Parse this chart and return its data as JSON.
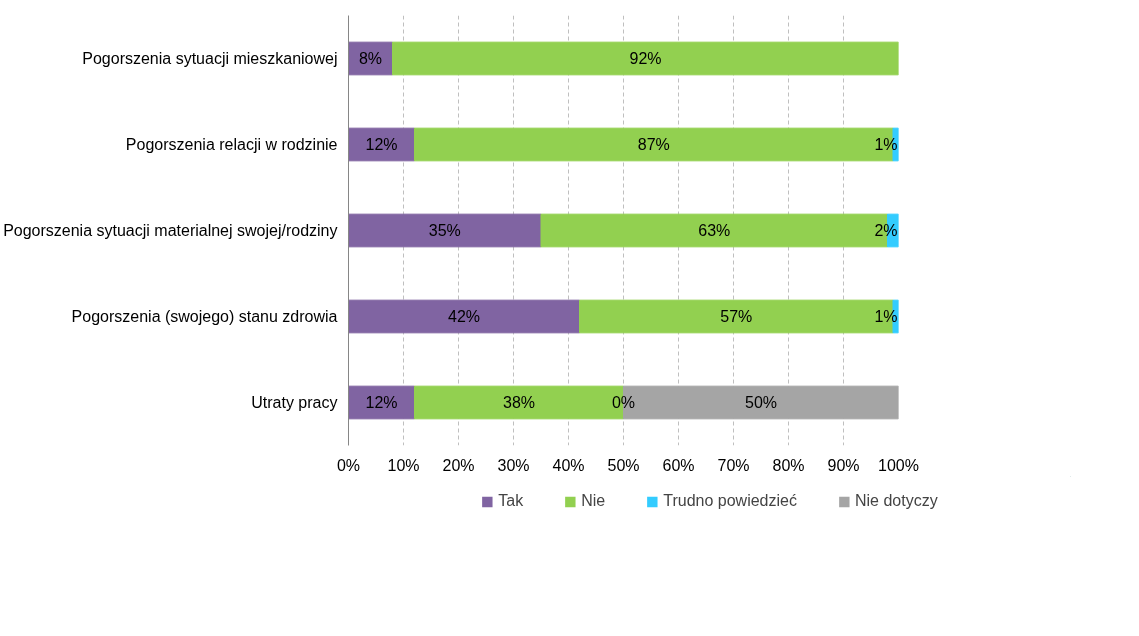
{
  "chart_data": {
    "type": "bar",
    "orientation": "horizontal",
    "stacked": true,
    "categories": [
      "Pogorszenia sytuacji mieszkaniowej",
      "Pogorszenia relacji w rodzinie",
      "Pogorszenia sytuacji materialnej swojej/rodziny",
      "Pogorszenia (swojego) stanu zdrowia",
      "Utraty pracy"
    ],
    "series": [
      {
        "name": "Tak",
        "color": "#8064a2",
        "values": [
          8,
          12,
          35,
          42,
          12
        ],
        "value_labels": [
          "8%",
          "12%",
          "35%",
          "42%",
          "12%"
        ]
      },
      {
        "name": "Nie",
        "color": "#92d050",
        "values": [
          92,
          87,
          63,
          57,
          38
        ],
        "value_labels": [
          "92%",
          "87%",
          "63%",
          "57%",
          "38%"
        ]
      },
      {
        "name": "Trudno powiedzieć",
        "color": "#33ccff",
        "values": [
          null,
          1,
          2,
          1,
          0
        ],
        "value_labels": [
          null,
          "1%",
          "2%",
          "1%",
          "0%"
        ]
      },
      {
        "name": "Nie dotyczy",
        "color": "#a5a5a5",
        "values": [
          null,
          null,
          null,
          null,
          50
        ],
        "value_labels": [
          null,
          null,
          null,
          null,
          "50%"
        ]
      }
    ],
    "xlim": [
      0,
      100
    ],
    "xticks": [
      {
        "value": 0,
        "label": "0%"
      },
      {
        "value": 10,
        "label": "10%"
      },
      {
        "value": 20,
        "label": "20%"
      },
      {
        "value": 30,
        "label": "30%"
      },
      {
        "value": 40,
        "label": "40%"
      },
      {
        "value": 50,
        "label": "50%"
      },
      {
        "value": 60,
        "label": "60%"
      },
      {
        "value": 70,
        "label": "70%"
      },
      {
        "value": 80,
        "label": "80%"
      },
      {
        "value": 90,
        "label": "90%"
      },
      {
        "value": 100,
        "label": "100%"
      }
    ],
    "grid": "x",
    "legend": "bottom"
  }
}
